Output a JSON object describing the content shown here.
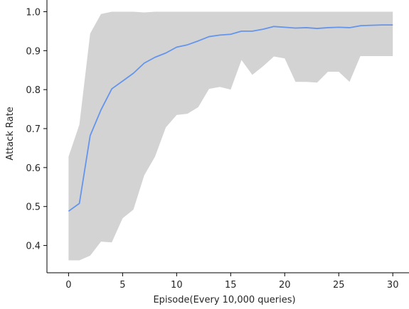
{
  "chart_data": {
    "type": "line",
    "title": "",
    "xlabel": "Episode(Every 10,000 queries)",
    "ylabel": "Attack Rate",
    "xlim": [
      -2,
      31.5
    ],
    "ylim": [
      0.33,
      1.03
    ],
    "x_ticks": [
      0,
      5,
      10,
      15,
      20,
      25,
      30
    ],
    "y_ticks": [
      0.4,
      0.5,
      0.6,
      0.7,
      0.8,
      0.9,
      1.0
    ],
    "x_tick_labels": [
      "0",
      "5",
      "10",
      "15",
      "20",
      "25",
      "30"
    ],
    "y_tick_labels": [
      "0.4",
      "0.5",
      "0.6",
      "0.7",
      "0.8",
      "0.9",
      "1.0"
    ],
    "grid": false,
    "legend": "none",
    "series": [
      {
        "x": [
          0,
          1,
          2,
          3,
          4,
          5,
          6,
          7,
          8,
          9,
          10,
          11,
          12,
          13,
          14,
          15,
          16,
          17,
          18,
          19,
          20,
          21,
          22,
          23,
          24,
          25,
          26,
          27,
          28,
          29,
          30
        ],
        "values": [
          0.488,
          0.508,
          0.682,
          0.748,
          0.802,
          0.822,
          0.842,
          0.868,
          0.883,
          0.894,
          0.909,
          0.915,
          0.925,
          0.936,
          0.94,
          0.942,
          0.95,
          0.95,
          0.955,
          0.962,
          0.96,
          0.958,
          0.959,
          0.957,
          0.959,
          0.96,
          0.959,
          0.964,
          0.965,
          0.966,
          0.966
        ],
        "lower": [
          0.362,
          0.362,
          0.374,
          0.41,
          0.408,
          0.47,
          0.492,
          0.58,
          0.628,
          0.703,
          0.735,
          0.738,
          0.755,
          0.802,
          0.807,
          0.8,
          0.876,
          0.838,
          0.86,
          0.885,
          0.88,
          0.82,
          0.82,
          0.818,
          0.846,
          0.846,
          0.82,
          0.886,
          0.886,
          0.886,
          0.886
        ],
        "upper": [
          0.628,
          0.71,
          0.944,
          0.994,
          1.0,
          1.0,
          1.0,
          0.998,
          1.0,
          1.0,
          1.0,
          1.0,
          1.0,
          1.0,
          1.0,
          1.0,
          1.0,
          1.0,
          1.0,
          1.0,
          1.0,
          1.0,
          1.0,
          1.0,
          1.0,
          1.0,
          1.0,
          1.0,
          1.0,
          1.0,
          1.0
        ]
      }
    ],
    "colors": {
      "line": "#6495ED",
      "band": "#D3D3D3",
      "axis": "#000000",
      "text": "#262626"
    }
  }
}
